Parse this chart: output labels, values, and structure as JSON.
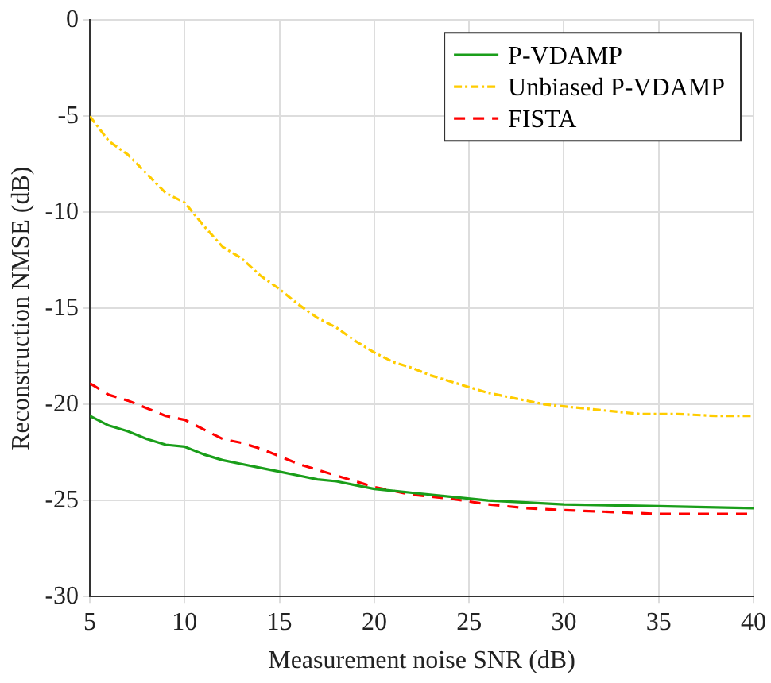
{
  "chart_data": {
    "type": "line",
    "xlabel": "Measurement noise SNR (dB)",
    "ylabel": "Reconstruction NMSE (dB)",
    "xlim": [
      5,
      40
    ],
    "xticks": [
      5,
      10,
      15,
      20,
      25,
      30,
      35,
      40
    ],
    "ylim": [
      -30,
      0
    ],
    "yticks": [
      -30,
      -25,
      -20,
      -15,
      -10,
      -5,
      0
    ],
    "grid": true,
    "legend": "top right",
    "marker": "none",
    "series": [
      {
        "name": "P-VDAMP",
        "color": "#1a9e1a",
        "line_style": "solid",
        "x": [
          5,
          6,
          7,
          8,
          9,
          10,
          11,
          12,
          13,
          14,
          15,
          16,
          17,
          18,
          19,
          20,
          22,
          24,
          26,
          28,
          30,
          35,
          40
        ],
        "values": [
          -20.6,
          -21.1,
          -21.4,
          -21.8,
          -22.1,
          -22.2,
          -22.6,
          -22.9,
          -23.1,
          -23.3,
          -23.5,
          -23.7,
          -23.9,
          -24.0,
          -24.2,
          -24.4,
          -24.6,
          -24.8,
          -25.0,
          -25.1,
          -25.2,
          -25.3,
          -25.4
        ]
      },
      {
        "name": "Unbiased P-VDAMP",
        "color": "#ffcc00",
        "line_style": "dotted",
        "x": [
          5,
          6,
          7,
          8,
          9,
          10,
          11,
          12,
          13,
          14,
          15,
          16,
          17,
          18,
          19,
          20,
          21,
          22,
          23,
          24,
          25,
          26,
          27,
          28,
          29,
          30,
          32,
          34,
          36,
          38,
          40
        ],
        "values": [
          -5,
          -6.3,
          -7,
          -8,
          -9,
          -9.5,
          -10.7,
          -11.8,
          -12.4,
          -13.3,
          -14,
          -14.8,
          -15.5,
          -16,
          -16.7,
          -17.3,
          -17.8,
          -18.1,
          -18.5,
          -18.8,
          -19.1,
          -19.4,
          -19.6,
          -19.8,
          -20,
          -20.1,
          -20.3,
          -20.5,
          -20.5,
          -20.6,
          -20.6
        ]
      },
      {
        "name": "FISTA",
        "color": "#ff0000",
        "line_style": "dashed",
        "x": [
          5,
          6,
          7,
          8,
          9,
          10,
          11,
          12,
          13,
          14,
          15,
          16,
          17,
          18,
          19,
          20,
          21,
          22,
          24,
          26,
          28,
          30,
          35,
          40
        ],
        "values": [
          -18.9,
          -19.5,
          -19.8,
          -20.2,
          -20.6,
          -20.8,
          -21.3,
          -21.8,
          -22.0,
          -22.3,
          -22.7,
          -23.1,
          -23.4,
          -23.7,
          -24.0,
          -24.3,
          -24.5,
          -24.7,
          -24.9,
          -25.2,
          -25.4,
          -25.5,
          -25.7,
          -25.7
        ]
      }
    ]
  }
}
